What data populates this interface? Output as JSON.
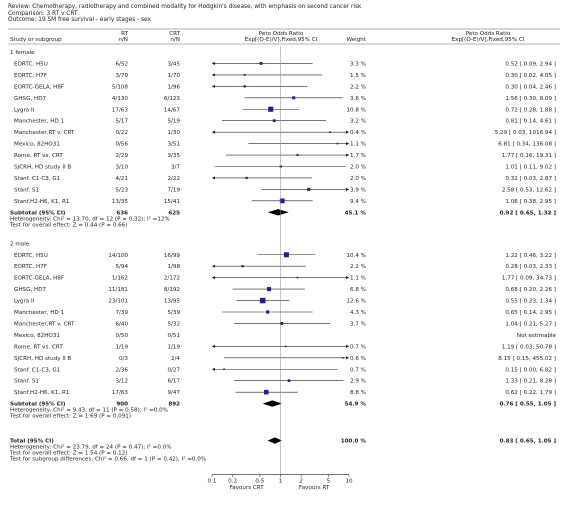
{
  "header": {
    "review": "Review:  Chemotherapy, radiotherapy and combined modality for Hodgkin's disease, with emphasis on second cancer risk",
    "comparison": "Comparison:  3 RT v CRT",
    "outcome": "Outcome:  19 SM free survival - early stages - sex"
  },
  "columns": {
    "study": "Study or subgroup",
    "rt": "RT",
    "rt_sub": "n/N",
    "crt": "CRT",
    "crt_sub": "n/N",
    "plot": "Peto Odds Ratio",
    "plot_sub": "Exp[(O-E)/V],Fixed,95% CI",
    "weight": "Weight",
    "ci": "Peto Odds Ratio",
    "ci_sub": "Exp[(O-E)/V],Fixed,95% CI"
  },
  "chart_data": {
    "type": "forest",
    "scale": "log",
    "xlim": [
      0.1,
      10
    ],
    "x_ticks": [
      "0.1",
      "0.2",
      "0.5",
      "1",
      "2",
      "5",
      "10"
    ],
    "x_tick_values": [
      0.1,
      0.2,
      0.5,
      1,
      2,
      5,
      10
    ],
    "favours_left": "Favours CRT",
    "favours_right": "Favours RT",
    "groups": [
      {
        "name": "1 female",
        "studies": [
          {
            "study": "EORTC, H5U",
            "rt": "6/52",
            "crt": "3/45",
            "weight": "3.3 %",
            "ci_text": "0.52 [ 0.09, 2.94 ]",
            "est": 0.52,
            "lo": 0.09,
            "hi": 2.94
          },
          {
            "study": "EORTC, H7F",
            "rt": "3/70",
            "crt": "1/70",
            "weight": "1.5 %",
            "ci_text": "0.30 [ 0.02, 4.05 ]",
            "est": 0.3,
            "lo": 0.02,
            "hi": 4.05
          },
          {
            "study": "EORTC-GELA, H8F",
            "rt": "5/108",
            "crt": "1/96",
            "weight": "2.2 %",
            "ci_text": "0.30 [ 0.04, 2.46 ]",
            "est": 0.3,
            "lo": 0.04,
            "hi": 2.46
          },
          {
            "study": "GHSG, HD7",
            "rt": "4/130",
            "crt": "6/123",
            "weight": "3.6 %",
            "ci_text": "1.56 [ 0.30, 8.09 ]",
            "est": 1.56,
            "lo": 0.3,
            "hi": 8.09
          },
          {
            "study": "Lygra II",
            "rt": "17/63",
            "crt": "14/67",
            "weight": "10.8 %",
            "ci_text": "0.72 [ 0.28, 1.88 ]",
            "est": 0.72,
            "lo": 0.28,
            "hi": 1.88
          },
          {
            "study": "Manchester, HD 1",
            "rt": "5/17",
            "crt": "5/19",
            "weight": "3.2 %",
            "ci_text": "0.81 [ 0.14, 4.61 ]",
            "est": 0.81,
            "lo": 0.14,
            "hi": 4.61
          },
          {
            "study": "Manchester,RT v. CRT",
            "rt": "0/22",
            "crt": "1/30",
            "weight": "0.4 %",
            "ci_text": "5.29 [ 0.03, 1016.94 ]",
            "est": 5.29,
            "lo": 0.03,
            "hi": 1016.94
          },
          {
            "study": "Mexico, 82HO31",
            "rt": "0/56",
            "crt": "3/51",
            "weight": "1.1 %",
            "ci_text": "6.81 [ 0.34, 136.08 ]",
            "est": 6.81,
            "lo": 0.34,
            "hi": 136.08
          },
          {
            "study": "Rome, RT vs. CRT",
            "rt": "2/29",
            "crt": "3/35",
            "weight": "1.7 %",
            "ci_text": "1.77 [ 0.16, 19.31 ]",
            "est": 1.77,
            "lo": 0.16,
            "hi": 19.31
          },
          {
            "study": "SJCRH, HD study II B",
            "rt": "3/10",
            "crt": "3/7",
            "weight": "2.0 %",
            "ci_text": "1.01 [ 0.11, 9.02 ]",
            "est": 1.01,
            "lo": 0.11,
            "hi": 9.02
          },
          {
            "study": "Stanf. C1-C3, G1",
            "rt": "4/21",
            "crt": "2/22",
            "weight": "2.0 %",
            "ci_text": "0.32 [ 0.03, 2.87 ]",
            "est": 0.32,
            "lo": 0.03,
            "hi": 2.87
          },
          {
            "study": "Stanf. S1",
            "rt": "5/23",
            "crt": "7/19",
            "weight": "3.9 %",
            "ci_text": "2.58 [ 0.53, 12.62 ]",
            "est": 2.58,
            "lo": 0.53,
            "hi": 12.62
          },
          {
            "study": "Stanf.H2-H6, K1, R1",
            "rt": "13/35",
            "crt": "15/41",
            "weight": "9.4 %",
            "ci_text": "1.06 [ 0.38, 2.95 ]",
            "est": 1.06,
            "lo": 0.38,
            "hi": 2.95
          }
        ],
        "subtotal": {
          "label": "Subtotal (95% CI)",
          "rt": "636",
          "crt": "625",
          "weight": "45.1 %",
          "ci_text": "0.92 [ 0.65, 1.32 ]",
          "est": 0.92,
          "lo": 0.65,
          "hi": 1.32
        },
        "het": "Heterogeneity: Chi² = 13.70, df = 12 (P = 0.32); I² =12%",
        "effect": "Test for overall effect: Z = 0.44 (P = 0.66)"
      },
      {
        "name": "2 male",
        "studies": [
          {
            "study": "EORTC, H5U",
            "rt": "14/100",
            "crt": "16/99",
            "weight": "10.4 %",
            "ci_text": "1.22 [ 0.46, 3.22 ]",
            "est": 1.22,
            "lo": 0.46,
            "hi": 3.22
          },
          {
            "study": "EORTC, H7F",
            "rt": "5/94",
            "crt": "1/98",
            "weight": "2.2 %",
            "ci_text": "0.28 [ 0.03, 2.33 ]",
            "est": 0.28,
            "lo": 0.03,
            "hi": 2.33
          },
          {
            "study": "EORTC-GELA, H8F",
            "rt": "1/162",
            "crt": "2/172",
            "weight": "1.1 %",
            "ci_text": "1.77 [ 0.09, 34.73 ]",
            "est": 1.77,
            "lo": 0.09,
            "hi": 34.73
          },
          {
            "study": "GHSG, HD7",
            "rt": "11/181",
            "crt": "8/192",
            "weight": "6.8 %",
            "ci_text": "0.68 [ 0.20, 2.26 ]",
            "est": 0.68,
            "lo": 0.2,
            "hi": 2.26
          },
          {
            "study": "Lygra II",
            "rt": "23/101",
            "crt": "13/95",
            "weight": "12.6 %",
            "ci_text": "0.55 [ 0.23, 1.34 ]",
            "est": 0.55,
            "lo": 0.23,
            "hi": 1.34
          },
          {
            "study": "Manchester, HD 1",
            "rt": "7/39",
            "crt": "5/39",
            "weight": "4.3 %",
            "ci_text": "0.65 [ 0.14, 2.95 ]",
            "est": 0.65,
            "lo": 0.14,
            "hi": 2.95
          },
          {
            "study": "Manchester,RT v. CRT",
            "rt": "6/40",
            "crt": "5/32",
            "weight": "3.7 %",
            "ci_text": "1.04 [ 0.21, 5.27 ]",
            "est": 1.04,
            "lo": 0.21,
            "hi": 5.27
          },
          {
            "study": "Mexico, 82HO31",
            "rt": "0/50",
            "crt": "0/51",
            "weight": "",
            "ci_text": "Not estimable",
            "est": null,
            "lo": null,
            "hi": null
          },
          {
            "study": "Rome, RT vs. CRT",
            "rt": "1/19",
            "crt": "1/19",
            "weight": "0.7 %",
            "ci_text": "1.19 [ 0.03, 50.78 ]",
            "est": 1.19,
            "lo": 0.03,
            "hi": 50.78
          },
          {
            "study": "SJCRH, HD study II B",
            "rt": "0/3",
            "crt": "2/4",
            "weight": "0.6 %",
            "ci_text": "8.15 [ 0.15, 455.02 ]",
            "est": 8.15,
            "lo": 0.15,
            "hi": 455.02
          },
          {
            "study": "Stanf. C1-C3, G1",
            "rt": "2/36",
            "crt": "0/27",
            "weight": "0.7 %",
            "ci_text": "0.15 [ 0.00, 6.82 ]",
            "est": 0.15,
            "lo": 0.003,
            "hi": 6.82
          },
          {
            "study": "Stanf. S1",
            "rt": "3/12",
            "crt": "6/17",
            "weight": "2.9 %",
            "ci_text": "1.33 [ 0.21, 8.28 ]",
            "est": 1.33,
            "lo": 0.21,
            "hi": 8.28
          },
          {
            "study": "Stanf.H2-H6, K1, R1",
            "rt": "17/63",
            "crt": "9/47",
            "weight": "8.8 %",
            "ci_text": "0.62 [ 0.22, 1.79 ]",
            "est": 0.62,
            "lo": 0.22,
            "hi": 1.79
          }
        ],
        "subtotal": {
          "label": "Subtotal (95% CI)",
          "rt": "900",
          "crt": "892",
          "weight": "54.9 %",
          "ci_text": "0.76 [ 0.55, 1.05 ]",
          "est": 0.76,
          "lo": 0.55,
          "hi": 1.05
        },
        "het": "Heterogeneity: Chi² = 9.43, df = 11 (P = 0.58); I² =0.0%",
        "effect": "Test for overall effect: Z = 1.69 (P = 0.091)"
      }
    ],
    "total": {
      "label": "Total (95% CI)",
      "weight": "100.0 %",
      "ci_text": "0.83 [ 0.65, 1.05 ]",
      "est": 0.83,
      "lo": 0.65,
      "hi": 1.05,
      "het": "Heterogeneity: Chi² = 23.79, df = 24 (P = 0.47); I² =0.0%",
      "effect": "Test for overall effect: Z = 1.54 (P = 0.12)",
      "subgroup": "Test for subgroup differences: Chi² = 0.66, df = 1 (P = 0.42), I² =0.0%"
    }
  }
}
